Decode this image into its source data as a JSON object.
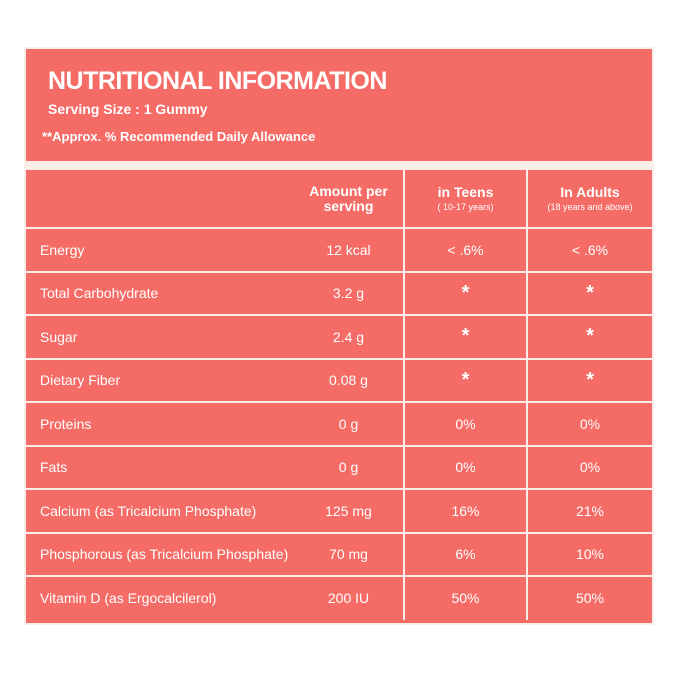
{
  "header": {
    "title": "NUTRITIONAL INFORMATION",
    "serving_size": "Serving Size : 1 Gummy",
    "note": "**Approx. % Recommended Daily Allowance"
  },
  "table": {
    "columns": [
      {
        "label": "",
        "sub": ""
      },
      {
        "label": "Amount per serving",
        "sub": ""
      },
      {
        "label": "in Teens",
        "sub": "( 10-17 years)"
      },
      {
        "label": "In Adults",
        "sub": "(18 years and above)"
      }
    ],
    "rows": [
      {
        "nutrient": "Energy",
        "amount": "12 kcal",
        "teens": "< .6%",
        "adults": "< .6%"
      },
      {
        "nutrient": "Total Carbohydrate",
        "amount": "3.2 g",
        "teens": "*",
        "adults": "*"
      },
      {
        "nutrient": "Sugar",
        "amount": "2.4 g",
        "teens": "*",
        "adults": "*"
      },
      {
        "nutrient": "Dietary Fiber",
        "amount": "0.08 g",
        "teens": "*",
        "adults": "*"
      },
      {
        "nutrient": "Proteins",
        "amount": "0 g",
        "teens": "0%",
        "adults": "0%"
      },
      {
        "nutrient": "Fats",
        "amount": "0 g",
        "teens": "0%",
        "adults": "0%"
      },
      {
        "nutrient": "Calcium (as Tricalcium Phosphate)",
        "amount": "125 mg",
        "teens": "16%",
        "adults": "21%"
      },
      {
        "nutrient": "Phosphorous (as Tricalcium Phosphate)",
        "amount": "70 mg",
        "teens": "6%",
        "adults": "10%"
      },
      {
        "nutrient": "Vitamin D (as Ergocalcilerol)",
        "amount": "200 IU",
        "teens": "50%",
        "adults": "50%"
      }
    ]
  },
  "colors": {
    "background": "#f56b66",
    "lines": "#fbeee9",
    "text": "#ffffff"
  }
}
